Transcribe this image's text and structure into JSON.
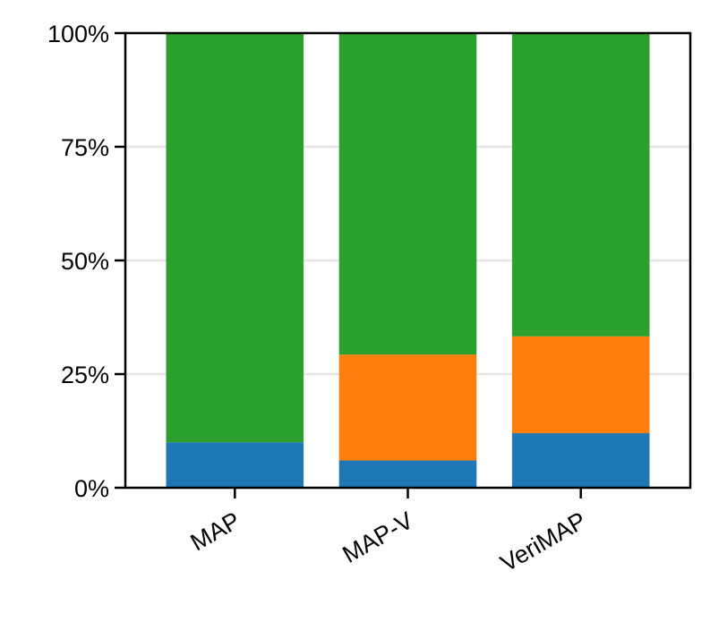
{
  "chart_data": {
    "type": "stacked_bar",
    "categories": [
      "MAP",
      "MAP-V",
      "VeriMAP"
    ],
    "series": [
      {
        "color": "#1f77b4",
        "values": [
          10,
          6,
          12
        ]
      },
      {
        "color": "#ff7f0e",
        "values": [
          0,
          23.3,
          21.3
        ]
      },
      {
        "color": "#2ca02c",
        "values": [
          90,
          70.7,
          66.7
        ]
      }
    ],
    "ylim": [
      0,
      100
    ],
    "yticks": [
      {
        "value": 0,
        "label": "0%"
      },
      {
        "value": 25,
        "label": "25%"
      },
      {
        "value": 50,
        "label": "50%"
      },
      {
        "value": 75,
        "label": "75%"
      },
      {
        "value": 100,
        "label": "100%"
      }
    ],
    "grid": true
  }
}
